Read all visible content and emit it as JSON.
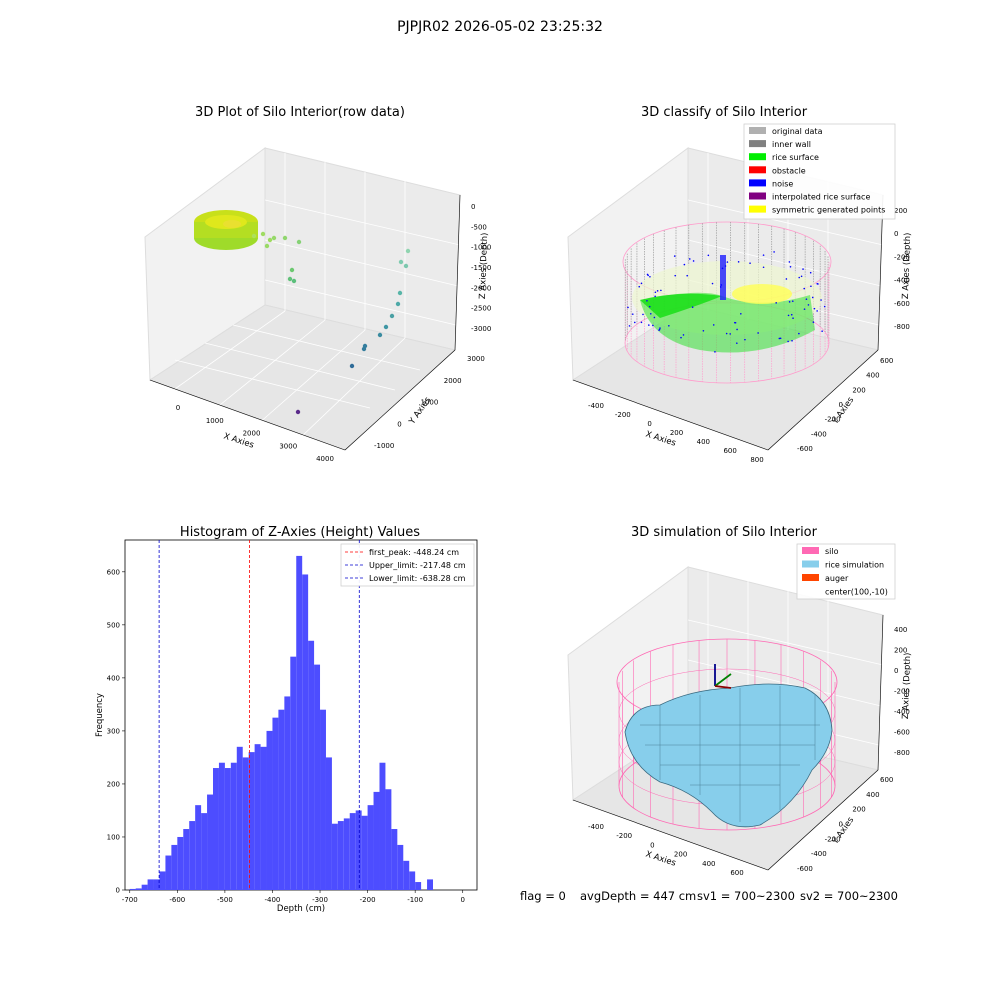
{
  "suptitle": "PJPJR02 2026-05-02 23:25:32",
  "footer": {
    "flag": "flag = 0",
    "avg": "avgDepth = 447 cm",
    "sv1": "sv1 = 700~2300",
    "sv2": "sv2 = 700~2300"
  },
  "colors": {
    "histogram_bar": "#4d4dff",
    "first_peak": "#ff0000",
    "limit_lines": "#0000cc",
    "silo": "#ff69b4",
    "rice_simulation": "#87ceeb",
    "auger": "#ff4500",
    "rice_surface": "#00ee00",
    "inner_wall": "#808080",
    "noise": "#0000ff",
    "symmetric": "#ffff00"
  },
  "panels": {
    "raw": {
      "title": "3D Plot of Silo Interior(row data)",
      "xlabel": "X Axies",
      "ylabel": "Y Axies",
      "zlabel": "Z Axies (Depth)",
      "x_ticks": [
        "0",
        "1000",
        "2000",
        "3000",
        "4000"
      ],
      "y_ticks": [
        "-1000",
        "0",
        "1000",
        "2000",
        "3000"
      ],
      "z_ticks": [
        "0",
        "-500",
        "-1000",
        "-1500",
        "-2000",
        "-2500",
        "-3000"
      ]
    },
    "classify": {
      "title": "3D classify of Silo Interior",
      "xlabel": "X Axies",
      "ylabel": "Y Axies",
      "zlabel": "Z Axies (Depth)",
      "x_ticks": [
        "-400",
        "-200",
        "0",
        "200",
        "400",
        "600",
        "800"
      ],
      "y_ticks": [
        "-600",
        "-400",
        "-200",
        "0",
        "200",
        "400",
        "600"
      ],
      "z_ticks": [
        "200",
        "0",
        "-200",
        "-400",
        "-600",
        "-800"
      ],
      "legend": [
        {
          "label": "original data",
          "color": "#b0b0b0"
        },
        {
          "label": "inner wall",
          "color": "#808080"
        },
        {
          "label": "rice surface",
          "color": "#00ee00"
        },
        {
          "label": "obstacle",
          "color": "#ff0000"
        },
        {
          "label": "noise",
          "color": "#0000ff"
        },
        {
          "label": "interpolated rice surface",
          "color": "#800080"
        },
        {
          "label": "symmetric generated points",
          "color": "#ffff00"
        }
      ]
    },
    "simulation": {
      "title": "3D simulation of Silo Interior",
      "xlabel": "X Axies",
      "ylabel": "Y Axies",
      "zlabel": "Z Axies (Depth)",
      "x_ticks": [
        "-400",
        "-200",
        "0",
        "200",
        "400",
        "600"
      ],
      "y_ticks": [
        "-600",
        "-400",
        "-200",
        "0",
        "200",
        "400",
        "600"
      ],
      "z_ticks": [
        "400",
        "200",
        "0",
        "-200",
        "-400",
        "-600",
        "-800"
      ],
      "legend": [
        {
          "label": "silo",
          "color": "#ff69b4"
        },
        {
          "label": "rice simulation",
          "color": "#87ceeb"
        },
        {
          "label": "auger",
          "color": "#ff4500"
        },
        {
          "label": "center(100,-10)",
          "color": ""
        }
      ]
    }
  },
  "chart_data": {
    "type": "bar",
    "title": "Histogram of Z-Axies (Height) Values",
    "xlabel": "Depth (cm)",
    "ylabel": "Frequency",
    "xlim": [
      -710,
      30
    ],
    "ylim": [
      0,
      660
    ],
    "x_ticks": [
      -700,
      -600,
      -500,
      -400,
      -300,
      -200,
      -100,
      0
    ],
    "y_ticks": [
      0,
      100,
      200,
      300,
      400,
      500,
      600
    ],
    "bin_start": -700,
    "bin_width": 12.5,
    "values": [
      2,
      3,
      10,
      20,
      20,
      35,
      65,
      85,
      100,
      115,
      130,
      160,
      145,
      180,
      230,
      240,
      230,
      240,
      270,
      250,
      260,
      275,
      270,
      300,
      325,
      340,
      365,
      440,
      630,
      595,
      470,
      425,
      340,
      250,
      125,
      130,
      135,
      145,
      150,
      140,
      160,
      185,
      240,
      190,
      115,
      85,
      55,
      35,
      15,
      0,
      20
    ],
    "vlines": [
      {
        "label": "first_peak: -448.24 cm",
        "x": -448.24,
        "color": "#ff0000"
      },
      {
        "label": "Upper_limit: -217.48 cm",
        "x": -217.48,
        "color": "#0000cc"
      },
      {
        "label": "Lower_limit: -638.28 cm",
        "x": -638.28,
        "color": "#0000cc"
      }
    ],
    "grid": false,
    "legend_position": "upper right"
  }
}
